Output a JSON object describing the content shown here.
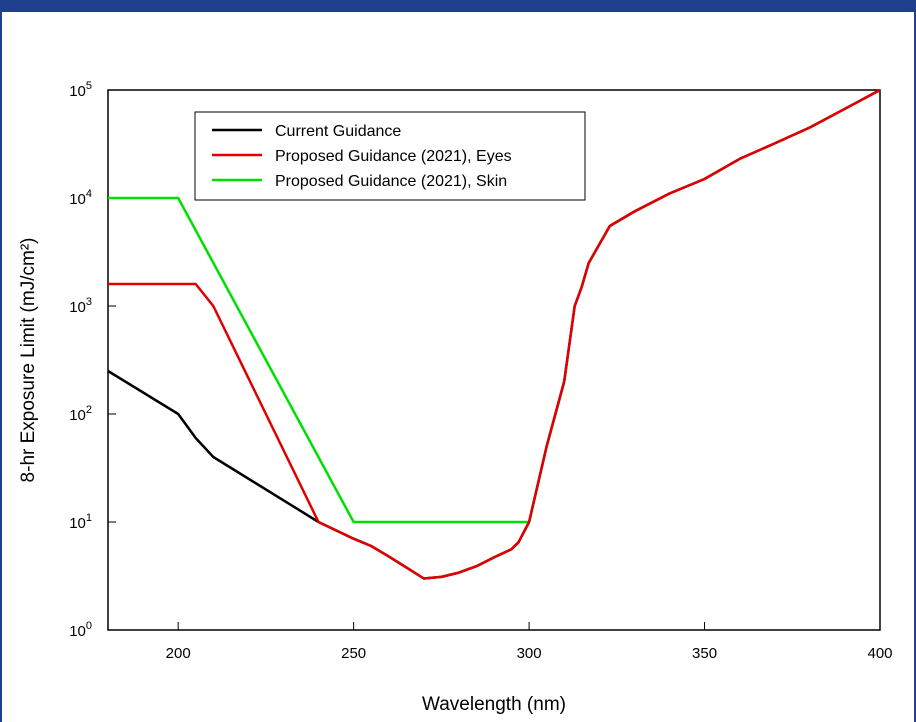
{
  "chart_data": {
    "type": "line",
    "xlabel": "Wavelength (nm)",
    "ylabel": "8-hr Exposure Limit (mJ/cm²)",
    "xlim": [
      180,
      400
    ],
    "ylim": [
      1,
      100000
    ],
    "yscale": "log",
    "x_ticks": [
      "200",
      "250",
      "300",
      "350",
      "400"
    ],
    "y_ticks": [
      {
        "base": "10",
        "exp": "0"
      },
      {
        "base": "10",
        "exp": "1"
      },
      {
        "base": "10",
        "exp": "2"
      },
      {
        "base": "10",
        "exp": "3"
      },
      {
        "base": "10",
        "exp": "4"
      },
      {
        "base": "10",
        "exp": "5"
      }
    ],
    "grid": false,
    "legend_position": "top-left",
    "series": [
      {
        "name": "Current Guidance",
        "color": "#000000",
        "points": [
          [
            180,
            250
          ],
          [
            200,
            100
          ],
          [
            205,
            60
          ],
          [
            210,
            40
          ],
          [
            240,
            10
          ],
          [
            250,
            7
          ],
          [
            255,
            6
          ],
          [
            260,
            4.8
          ],
          [
            265,
            3.8
          ],
          [
            270,
            3.0
          ],
          [
            275,
            3.1
          ],
          [
            280,
            3.4
          ],
          [
            285,
            3.9
          ],
          [
            290,
            4.7
          ],
          [
            295,
            5.6
          ],
          [
            297,
            6.5
          ],
          [
            300,
            10
          ],
          [
            305,
            50
          ],
          [
            310,
            200
          ],
          [
            313,
            1000
          ],
          [
            315,
            1500
          ],
          [
            317,
            2500
          ],
          [
            323,
            5500
          ],
          [
            330,
            7500
          ],
          [
            340,
            11000
          ],
          [
            350,
            15000
          ],
          [
            360,
            23000
          ],
          [
            370,
            32000
          ],
          [
            380,
            45000
          ],
          [
            390,
            67000
          ],
          [
            400,
            100000
          ]
        ]
      },
      {
        "name": "Proposed Guidance (2021), Eyes",
        "color": "#e00000",
        "points": [
          [
            180,
            1600
          ],
          [
            205,
            1600
          ],
          [
            210,
            1000
          ],
          [
            240,
            10
          ],
          [
            250,
            7
          ],
          [
            255,
            6
          ],
          [
            260,
            4.8
          ],
          [
            265,
            3.8
          ],
          [
            270,
            3.0
          ],
          [
            275,
            3.1
          ],
          [
            280,
            3.4
          ],
          [
            285,
            3.9
          ],
          [
            290,
            4.7
          ],
          [
            295,
            5.6
          ],
          [
            297,
            6.5
          ],
          [
            300,
            10
          ],
          [
            305,
            50
          ],
          [
            310,
            200
          ],
          [
            313,
            1000
          ],
          [
            315,
            1500
          ],
          [
            317,
            2500
          ],
          [
            323,
            5500
          ],
          [
            330,
            7500
          ],
          [
            340,
            11000
          ],
          [
            350,
            15000
          ],
          [
            360,
            23000
          ],
          [
            370,
            32000
          ],
          [
            380,
            45000
          ],
          [
            390,
            67000
          ],
          [
            400,
            100000
          ]
        ]
      },
      {
        "name": "Proposed Guidance (2021), Skin",
        "color": "#00e000",
        "points": [
          [
            180,
            10000
          ],
          [
            200,
            10000
          ],
          [
            250,
            10
          ],
          [
            300,
            10
          ]
        ]
      }
    ]
  }
}
